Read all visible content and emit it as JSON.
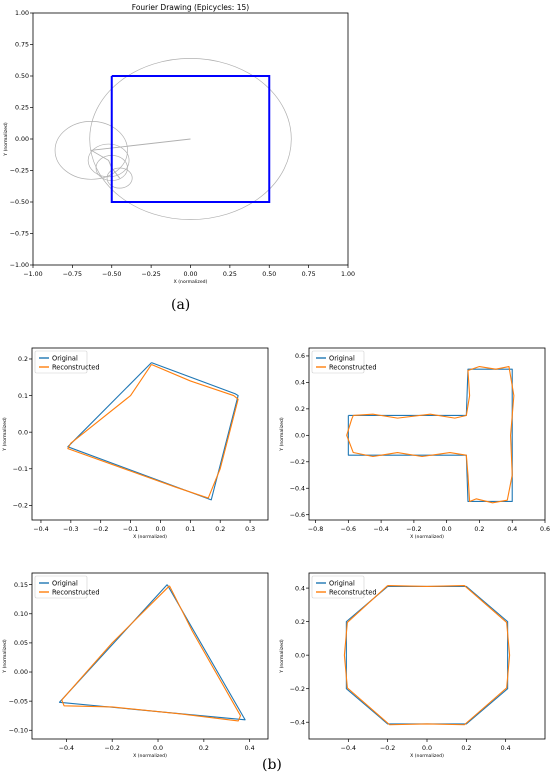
{
  "panel_labels": {
    "a": "(a)",
    "b": "(b)"
  },
  "chart_data": [
    {
      "id": "top",
      "type": "line",
      "title": "Fourier Drawing (Epicycles: 15)",
      "xlabel": "X (normalized)",
      "ylabel": "Y (normalized)",
      "xlim": [
        -1.0,
        1.0
      ],
      "ylim": [
        -1.0,
        1.0
      ],
      "xticks": [
        -1.0,
        -0.75,
        -0.5,
        -0.25,
        0.0,
        0.25,
        0.5,
        0.75,
        1.0
      ],
      "yticks": [
        -1.0,
        -0.75,
        -0.5,
        -0.25,
        0.0,
        0.25,
        0.5,
        0.75,
        1.0
      ],
      "xtick_labels": [
        "−1.00",
        "−0.75",
        "−0.50",
        "−0.25",
        "0.00",
        "0.25",
        "0.50",
        "0.75",
        "1.00"
      ],
      "ytick_labels": [
        "−1.00",
        "−0.75",
        "−0.50",
        "−0.25",
        "0.00",
        "0.25",
        "0.50",
        "0.75",
        "1.00"
      ],
      "grid": false,
      "square": {
        "x": [
          -0.5,
          0.5,
          0.5,
          -0.5,
          -0.5
        ],
        "y": [
          0.5,
          0.5,
          -0.5,
          -0.5,
          0.5
        ],
        "color": "#0000ff"
      },
      "epicycles": [
        {
          "cx": 0.0,
          "cy": 0.0,
          "r": 0.64
        },
        {
          "cx": -0.63,
          "cy": -0.09,
          "r": 0.23
        },
        {
          "cx": -0.52,
          "cy": -0.17,
          "r": 0.13
        },
        {
          "cx": -0.5,
          "cy": -0.23,
          "r": 0.1
        },
        {
          "cx": -0.45,
          "cy": -0.31,
          "r": 0.08
        }
      ],
      "arm": {
        "x": [
          0.0,
          -0.63,
          -0.52,
          -0.5,
          -0.45
        ],
        "y": [
          0.0,
          -0.09,
          -0.17,
          -0.23,
          -0.31
        ]
      },
      "circle_color": "#b0b0b0"
    },
    {
      "id": "quad",
      "type": "line",
      "xlabel": "X (normalized)",
      "ylabel": "Y (normalized)",
      "xlim": [
        -0.43,
        0.36
      ],
      "ylim": [
        -0.24,
        0.23
      ],
      "xticks": [
        -0.4,
        -0.3,
        -0.2,
        -0.1,
        0.0,
        0.1,
        0.2,
        0.3
      ],
      "yticks": [
        -0.2,
        -0.1,
        0.0,
        0.1,
        0.2
      ],
      "xtick_labels": [
        "−0.4",
        "−0.3",
        "−0.2",
        "−0.1",
        "0.0",
        "0.1",
        "0.2",
        "0.3"
      ],
      "ytick_labels": [
        "−0.2",
        "−0.1",
        "0.0",
        "0.1",
        "0.2"
      ],
      "legend": {
        "position": "top-left",
        "entries": [
          "Original",
          "Reconstructed"
        ]
      },
      "series": [
        {
          "name": "Original",
          "color": "#1f77b4",
          "x": [
            -0.03,
            0.25,
            0.26,
            0.17,
            -0.31,
            -0.03
          ],
          "y": [
            0.19,
            0.105,
            0.1,
            -0.185,
            -0.04,
            0.19
          ]
        },
        {
          "name": "Reconstructed",
          "color": "#ff7f0e",
          "x": [
            -0.03,
            0.1,
            0.245,
            0.26,
            0.2,
            0.16,
            0.05,
            -0.31,
            -0.3,
            -0.1,
            -0.03
          ],
          "y": [
            0.185,
            0.14,
            0.1,
            0.09,
            -0.1,
            -0.18,
            -0.15,
            -0.045,
            -0.03,
            0.1,
            0.185
          ]
        }
      ]
    },
    {
      "id": "tshape",
      "type": "line",
      "xlabel": "X (normalized)",
      "ylabel": "Y (normalized)",
      "xlim": [
        -0.84,
        0.6
      ],
      "ylim": [
        -0.64,
        0.66
      ],
      "xticks": [
        -0.8,
        -0.6,
        -0.4,
        -0.2,
        0.0,
        0.2,
        0.4,
        0.6
      ],
      "yticks": [
        -0.6,
        -0.4,
        -0.2,
        0.0,
        0.2,
        0.4,
        0.6
      ],
      "xtick_labels": [
        "−0.8",
        "−0.6",
        "−0.4",
        "−0.2",
        "0.0",
        "0.2",
        "0.4",
        "0.6"
      ],
      "ytick_labels": [
        "−0.6",
        "−0.4",
        "−0.2",
        "0.0",
        "0.2",
        "0.4",
        "0.6"
      ],
      "legend": {
        "position": "top-left",
        "entries": [
          "Original",
          "Reconstructed"
        ]
      },
      "series": [
        {
          "name": "Original",
          "color": "#1f77b4",
          "x": [
            -0.6,
            0.12,
            0.13,
            0.4,
            0.4,
            0.13,
            0.12,
            -0.6,
            -0.6
          ],
          "y": [
            0.15,
            0.15,
            0.5,
            0.5,
            -0.5,
            -0.5,
            -0.15,
            -0.15,
            0.15
          ]
        },
        {
          "name": "Reconstructed",
          "color": "#ff7f0e",
          "x": [
            -0.57,
            -0.45,
            -0.3,
            -0.1,
            0.05,
            0.12,
            0.14,
            0.13,
            0.2,
            0.3,
            0.38,
            0.41,
            0.39,
            0.4,
            0.37,
            0.28,
            0.18,
            0.14,
            0.13,
            0.12,
            0.02,
            -0.15,
            -0.3,
            -0.45,
            -0.57,
            -0.61,
            -0.58,
            -0.57
          ],
          "y": [
            0.15,
            0.16,
            0.13,
            0.16,
            0.13,
            0.15,
            0.3,
            0.49,
            0.52,
            0.5,
            0.52,
            0.3,
            0.0,
            -0.3,
            -0.49,
            -0.51,
            -0.48,
            -0.5,
            -0.3,
            -0.15,
            -0.13,
            -0.16,
            -0.13,
            -0.16,
            -0.13,
            0.0,
            0.12,
            0.15
          ]
        }
      ]
    },
    {
      "id": "triangle",
      "type": "line",
      "xlabel": "X (normalized)",
      "ylabel": "Y (normalized)",
      "xlim": [
        -0.55,
        0.48
      ],
      "ylim": [
        -0.115,
        0.17
      ],
      "xticks": [
        -0.4,
        -0.2,
        0.0,
        0.2,
        0.4
      ],
      "yticks": [
        -0.1,
        -0.05,
        0.0,
        0.05,
        0.1,
        0.15
      ],
      "xtick_labels": [
        "−0.4",
        "−0.2",
        "0.0",
        "0.2",
        "0.4"
      ],
      "ytick_labels": [
        "−0.10",
        "−0.05",
        "0.00",
        "0.05",
        "0.10",
        "0.15"
      ],
      "legend": {
        "position": "top-left",
        "entries": [
          "Original",
          "Reconstructed"
        ]
      },
      "series": [
        {
          "name": "Original",
          "color": "#1f77b4",
          "x": [
            0.04,
            0.38,
            -0.43,
            0.04
          ],
          "y": [
            0.15,
            -0.082,
            -0.052,
            0.15
          ]
        },
        {
          "name": "Reconstructed",
          "color": "#ff7f0e",
          "x": [
            0.05,
            0.15,
            0.36,
            0.35,
            0.1,
            -0.2,
            -0.41,
            -0.42,
            -0.2,
            0.05
          ],
          "y": [
            0.148,
            0.07,
            -0.075,
            -0.084,
            -0.072,
            -0.06,
            -0.058,
            -0.048,
            0.05,
            0.148
          ]
        }
      ]
    },
    {
      "id": "octagon",
      "type": "line",
      "xlabel": "X (normalized)",
      "ylabel": "Y (normalized)",
      "xlim": [
        -0.6,
        0.6
      ],
      "ylim": [
        -0.5,
        0.49
      ],
      "xticks": [
        -0.4,
        -0.2,
        0.0,
        0.2,
        0.4
      ],
      "yticks": [
        -0.4,
        -0.2,
        0.0,
        0.2,
        0.4
      ],
      "xtick_labels": [
        "−0.4",
        "−0.2",
        "0.0",
        "0.2",
        "0.4"
      ],
      "ytick_labels": [
        "−0.4",
        "−0.2",
        "0.0",
        "0.2",
        "0.4"
      ],
      "legend": {
        "position": "top-left",
        "entries": [
          "Original",
          "Reconstructed"
        ]
      },
      "series": [
        {
          "name": "Original",
          "color": "#1f77b4",
          "x": [
            -0.2,
            0.2,
            0.41,
            0.41,
            0.2,
            -0.2,
            -0.41,
            -0.41,
            -0.2
          ],
          "y": [
            0.41,
            0.41,
            0.2,
            -0.2,
            -0.41,
            -0.41,
            -0.2,
            0.2,
            0.41
          ]
        },
        {
          "name": "Reconstructed",
          "color": "#ff7f0e",
          "x": [
            -0.2,
            0.0,
            0.19,
            0.405,
            0.42,
            0.405,
            0.19,
            0.0,
            -0.19,
            -0.405,
            -0.42,
            -0.405,
            -0.2
          ],
          "y": [
            0.415,
            0.41,
            0.415,
            0.195,
            0.0,
            -0.195,
            -0.415,
            -0.41,
            -0.415,
            -0.195,
            0.0,
            0.195,
            0.415
          ]
        }
      ]
    }
  ]
}
